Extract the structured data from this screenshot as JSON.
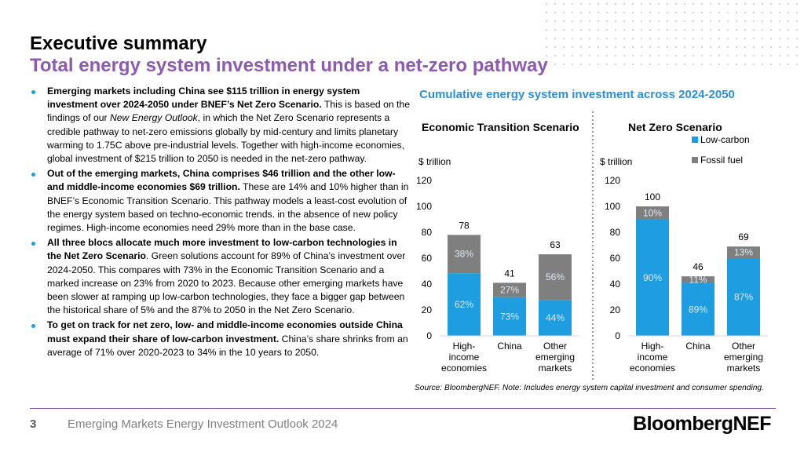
{
  "header": {
    "title": "Executive summary",
    "subtitle": "Total energy system investment under a net-zero pathway"
  },
  "bullets": [
    {
      "bold": "Emerging markets including China see $115 trillion in energy system investment over 2024-2050 under BNEF’s Net Zero Scenario.",
      "pre_italic": " This is based on the findings of our ",
      "italic": "New Energy Outlook",
      "rest": ", in which the Net Zero Scenario represents a credible pathway to net-zero emissions globally by mid-century and limits planetary warming to 1.75C above pre-industrial levels. Together with high-income economies, global investment of $215 trillion to 2050 is needed in the net-zero pathway."
    },
    {
      "bold": "Out of the emerging markets, China comprises $46 trillion and the other low- and middle-income economies $69 trillion.",
      "rest": " These are 14% and 10% higher than in BNEF’s Economic Transition Scenario. This pathway models a least-cost evolution of the energy system based on techno-economic trends. in the absence of new policy regimes. High-income economies need 29% more than in the base case."
    },
    {
      "bold": "All three blocs allocate much more investment to low-carbon technologies in the Net Zero Scenario",
      "rest": ". Green solutions account for 89% of China’s investment over 2024-2050. This compares with 73% in the Economic Transition Scenario and a marked increase on 23% from 2020 to 2023. Because other emerging markets have been slower at ramping up low-carbon technologies, they face a bigger gap between the historical share of 5% and the 87% to 2050 in the Net Zero Scenario."
    },
    {
      "bold": "To get on track for net zero, low- and middle-income economies outside China must expand their share of low-carbon investment.",
      "rest": " China’s share shrinks from an average of 71% over 2020-2023 to 34% in the 10 years to 2050."
    }
  ],
  "chart_heading": "Cumulative energy system investment across 2024-2050",
  "chart_data": [
    {
      "type": "bar",
      "stacked": true,
      "title": "Economic Transition Scenario",
      "ylabel": "$ trillion",
      "ylim": [
        0,
        120
      ],
      "yticks": [
        0,
        20,
        40,
        60,
        80,
        100,
        120
      ],
      "categories": [
        "High-income economies",
        "China",
        "Other emerging markets"
      ],
      "category_lines": [
        [
          "High-",
          "income",
          "economies"
        ],
        [
          "China"
        ],
        [
          "Other",
          "emerging",
          "markets"
        ]
      ],
      "totals": [
        78,
        41,
        63
      ],
      "series": [
        {
          "name": "Low-carbon",
          "values": [
            48.4,
            29.9,
            27.7
          ],
          "labels": [
            "62%",
            "73%",
            "44%"
          ]
        },
        {
          "name": "Fossil fuel",
          "values": [
            29.6,
            11.1,
            35.3
          ],
          "labels": [
            "38%",
            "27%",
            "56%"
          ]
        }
      ]
    },
    {
      "type": "bar",
      "stacked": true,
      "title": "Net Zero Scenario",
      "ylabel": "$ trillion",
      "ylim": [
        0,
        120
      ],
      "yticks": [
        0,
        20,
        40,
        60,
        80,
        100,
        120
      ],
      "categories": [
        "High-income economies",
        "China",
        "Other emerging markets"
      ],
      "category_lines": [
        [
          "High-",
          "income",
          "economies"
        ],
        [
          "China"
        ],
        [
          "Other",
          "emerging",
          "markets"
        ]
      ],
      "totals": [
        100,
        46,
        69
      ],
      "legend": "top-right",
      "series": [
        {
          "name": "Low-carbon",
          "values": [
            90,
            40.9,
            60
          ],
          "labels": [
            "90%",
            "89%",
            "87%"
          ]
        },
        {
          "name": "Fossil fuel",
          "values": [
            10,
            5.1,
            9
          ],
          "labels": [
            "10%",
            "11%",
            "13%"
          ]
        }
      ]
    }
  ],
  "source_note": "Source: BloombergNEF. Note: Includes energy system capital investment and consumer spending.",
  "footer": {
    "page_number": "3",
    "publication": "Emerging Markets Energy Investment Outlook 2024",
    "brand": "BloombergNEF"
  },
  "colors": {
    "low_carbon": "#1e9ee0",
    "fossil_fuel": "#7f7f7f",
    "accent_purple": "#8c5bb0",
    "heading_blue": "#2e8fd6",
    "bullet_blue": "#1e9ee0",
    "bar_label_light": "#dde9f2"
  }
}
